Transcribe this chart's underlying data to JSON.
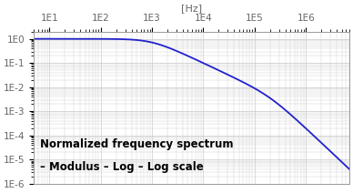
{
  "title_line1": "Normalized frequency spectrum",
  "title_line2": "– Modulus – Log – Log scale",
  "line_color": "#2222cc",
  "background_color": "#ffffff",
  "grid_color": "#cccccc",
  "xlim": [
    5.0,
    7000000.0
  ],
  "ylim": [
    1e-06,
    2.0
  ],
  "xlabel": "[Hz]",
  "fc": 1000.0,
  "fc2": 200000.0,
  "line_width": 1.3,
  "x_tick_labels": [
    "1E1",
    "1E2",
    "1E3",
    "1E4",
    "1E5",
    "1E6"
  ],
  "x_tick_values": [
    10,
    100,
    1000,
    10000,
    100000,
    1000000
  ],
  "y_tick_labels": [
    "1E0",
    "1E-1",
    "1E-2",
    "1E-3",
    "1E-4",
    "1E-5",
    "1E-6"
  ],
  "y_tick_values": [
    1.0,
    0.1,
    0.01,
    0.001,
    0.0001,
    1e-05,
    1e-06
  ],
  "title_fontsize": 8.5,
  "tick_fontsize": 7.5,
  "tick_color": "#666666"
}
